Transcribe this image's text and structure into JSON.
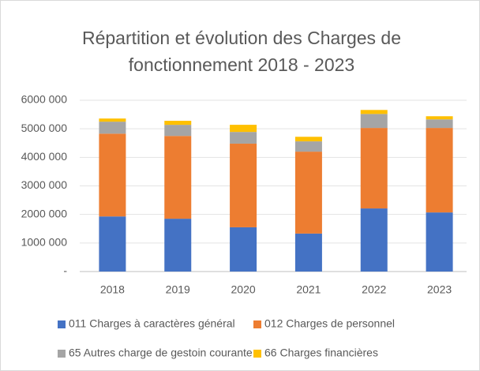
{
  "chart_data": {
    "type": "stacked_bar",
    "title": "Répartition et évolution des Charges de fonctionnement  2018 - 2023",
    "categories": [
      "2018",
      "2019",
      "2020",
      "2021",
      "2022",
      "2023"
    ],
    "series": [
      {
        "name": "011 Charges à caractères général",
        "color": "#4472c4",
        "values": [
          1930000,
          1850000,
          1550000,
          1330000,
          2210000,
          2070000
        ]
      },
      {
        "name": "012 Charges de personnel",
        "color": "#ed7d31",
        "values": [
          2900000,
          2900000,
          2930000,
          2870000,
          2820000,
          2960000
        ]
      },
      {
        "name": "65 Autres charge de gestoin courante",
        "color": "#a5a5a5",
        "values": [
          420000,
          390000,
          410000,
          360000,
          490000,
          300000
        ]
      },
      {
        "name": "66 Charges financières",
        "color": "#ffc000",
        "values": [
          110000,
          140000,
          250000,
          160000,
          140000,
          110000
        ]
      }
    ],
    "ylim": [
      0,
      6000000
    ],
    "yticks": [
      {
        "value": 0,
        "label": "-"
      },
      {
        "value": 1000000,
        "label": "1000 000"
      },
      {
        "value": 2000000,
        "label": "2000 000"
      },
      {
        "value": 3000000,
        "label": "3000 000"
      },
      {
        "value": 4000000,
        "label": "4000 000"
      },
      {
        "value": 5000000,
        "label": "5000 000"
      },
      {
        "value": 6000000,
        "label": "6000 000"
      }
    ],
    "grid": true,
    "legend": "bottom"
  }
}
